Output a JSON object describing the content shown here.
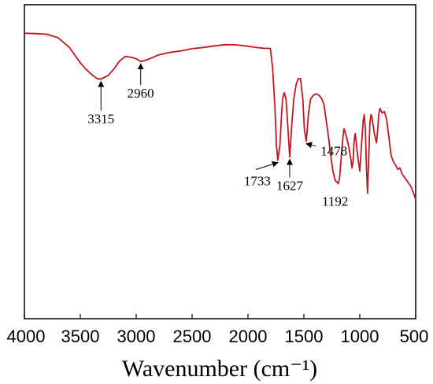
{
  "chart_data": {
    "type": "line",
    "title": "",
    "xlabel": "Wavenumber (cm⁻¹)",
    "ylabel": "",
    "xlim": [
      4000,
      500
    ],
    "x_reversed": true,
    "ylim": [
      0,
      100
    ],
    "grid": false,
    "legend": "none",
    "xticks": [
      4000,
      3500,
      3000,
      2500,
      2000,
      1500,
      1000,
      500
    ],
    "xtick_labels": [
      "4000",
      "3500",
      "3000",
      "2500",
      "2000",
      "1500",
      "1000",
      "500"
    ],
    "line_color": "#c4161c",
    "series": [
      {
        "x": [
          4000,
          3900,
          3800,
          3700,
          3600,
          3500,
          3450,
          3400,
          3350,
          3315,
          3250,
          3200,
          3150,
          3100,
          3050,
          3000,
          2960,
          2900,
          2800,
          2700,
          2600,
          2500,
          2400,
          2300,
          2200,
          2100,
          2000,
          1950,
          1900,
          1850,
          1800,
          1780,
          1760,
          1745,
          1733,
          1715,
          1700,
          1690,
          1675,
          1660,
          1645,
          1627,
          1610,
          1590,
          1570,
          1550,
          1530,
          1510,
          1495,
          1478,
          1460,
          1440,
          1420,
          1400,
          1380,
          1360,
          1340,
          1320,
          1300,
          1280,
          1260,
          1240,
          1220,
          1205,
          1192,
          1180,
          1165,
          1150,
          1140,
          1120,
          1100,
          1080,
          1070,
          1060,
          1050,
          1040,
          1020,
          1000,
          985,
          970,
          960,
          950,
          940,
          930,
          920,
          910,
          900,
          890,
          870,
          850,
          840,
          830,
          820,
          800,
          780,
          760,
          740,
          720,
          700,
          680,
          660,
          640,
          620,
          600,
          580,
          560,
          540,
          520,
          500
        ],
        "y": [
          90.9,
          90.8,
          90.6,
          89.5,
          86.5,
          81.5,
          79.5,
          77.8,
          76.5,
          76.3,
          77.5,
          79.5,
          82.0,
          83.5,
          83.3,
          82.8,
          81.9,
          82.5,
          84.0,
          84.8,
          85.3,
          86.0,
          86.4,
          86.9,
          87.3,
          87.2,
          86.8,
          86.5,
          86.3,
          86.1,
          86.1,
          80.0,
          68.0,
          55.0,
          50.5,
          55.0,
          65.0,
          70.0,
          72.0,
          70.0,
          62.0,
          51.5,
          61.0,
          70.0,
          74.5,
          76.5,
          76.5,
          70.0,
          60.0,
          56.5,
          65.0,
          70.0,
          71.0,
          71.5,
          71.5,
          71.0,
          70.0,
          68.0,
          63.0,
          58.0,
          52.0,
          47.0,
          44.0,
          43.5,
          43.0,
          45.0,
          52.0,
          58.0,
          60.5,
          58.0,
          55.0,
          51.0,
          48.0,
          50.0,
          57.0,
          59.0,
          52.0,
          47.0,
          55.0,
          63.0,
          65.0,
          60.0,
          48.0,
          40.0,
          52.0,
          62.0,
          65.0,
          64.0,
          59.0,
          56.0,
          60.0,
          65.0,
          67.0,
          65.5,
          66.0,
          63.5,
          58.0,
          52.0,
          50.0,
          49.0,
          47.5,
          48.0,
          46.0,
          45.0,
          44.0,
          43.0,
          42.0,
          40.0,
          38.0
        ]
      }
    ],
    "annotations": [
      {
        "label": "3315",
        "x": 3315,
        "y": 76.3
      },
      {
        "label": "2960",
        "x": 2960,
        "y": 81.9
      },
      {
        "label": "1733",
        "x": 1733,
        "y": 50.5
      },
      {
        "label": "1627",
        "x": 1627,
        "y": 51.5
      },
      {
        "label": "1478",
        "x": 1478,
        "y": 56.5
      },
      {
        "label": "1192",
        "x": 1192,
        "y": 43.0
      }
    ]
  }
}
